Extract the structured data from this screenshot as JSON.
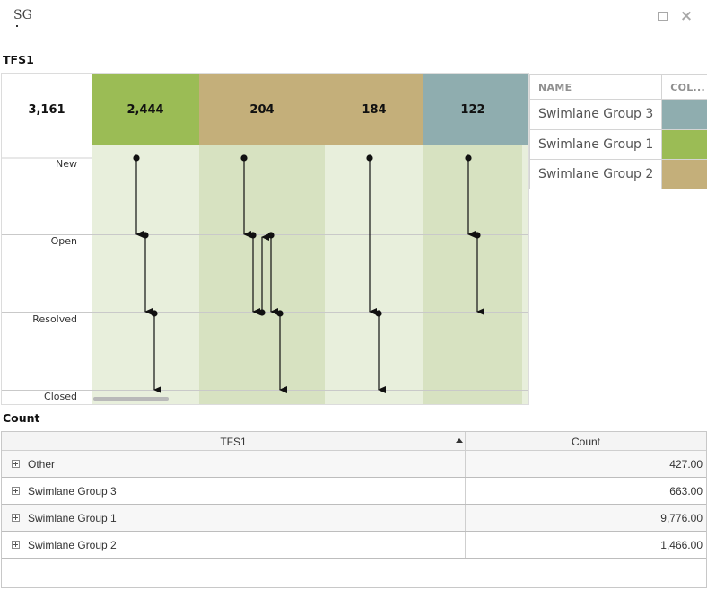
{
  "window": {
    "title": "SG"
  },
  "flow": {
    "title": "TFS1",
    "total": "3,161",
    "states": [
      "New",
      "Open",
      "Resolved",
      "Closed"
    ],
    "groups": [
      {
        "label": "2,444",
        "color": "#9bbc55",
        "lane_colors": [
          "#e8efdc"
        ]
      },
      {
        "label": "204",
        "color": "#c4af7a",
        "lane_colors": [
          "#d7e2c1",
          "#e8efdc"
        ]
      },
      {
        "label": "184",
        "color": "#c4af7a",
        "lane_colors": []
      },
      {
        "label": "122",
        "color": "#8fadaf",
        "lane_colors": [
          "#d7e2c1"
        ]
      }
    ]
  },
  "legend": {
    "headers": {
      "name": "NAME",
      "color": "COL..."
    },
    "rows": [
      {
        "name": "Swimlane Group 3",
        "color": "#8fadaf"
      },
      {
        "name": "Swimlane Group 1",
        "color": "#9bbc55"
      },
      {
        "name": "Swimlane Group 2",
        "color": "#c4af7a"
      }
    ]
  },
  "count_grid": {
    "title": "Count",
    "headers": {
      "group": "TFS1",
      "count": "Count"
    },
    "rows": [
      {
        "name": "Other",
        "count": "427.00"
      },
      {
        "name": "Swimlane Group 3",
        "count": "663.00"
      },
      {
        "name": "Swimlane Group 1",
        "count": "9,776.00"
      },
      {
        "name": "Swimlane Group 2",
        "count": "1,466.00"
      }
    ]
  }
}
